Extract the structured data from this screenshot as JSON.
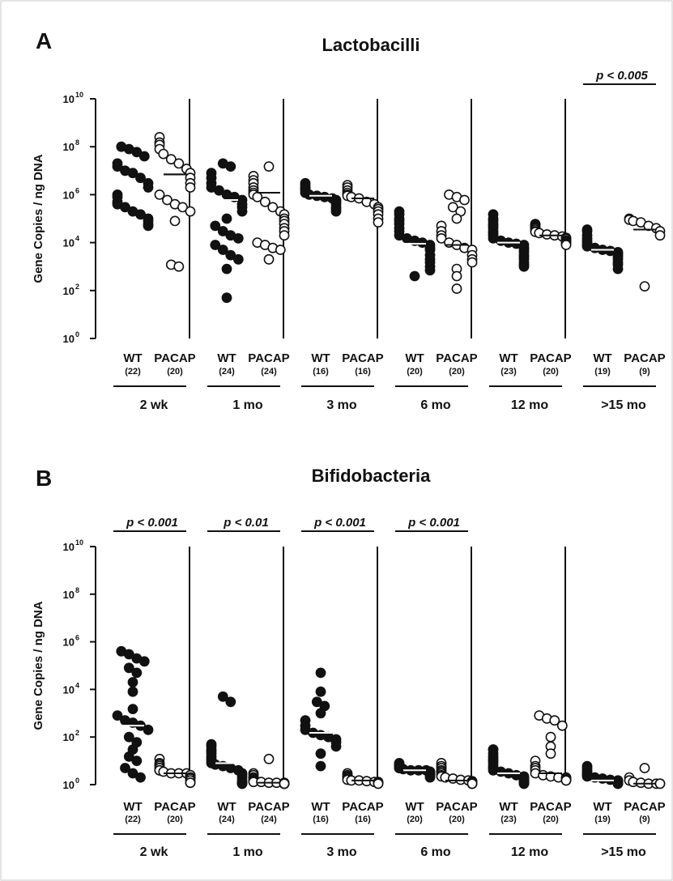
{
  "chart_data": [
    {
      "type": "scatter",
      "panel_letter": "A",
      "title": "Lactobacilli",
      "ylabel": "Gene Copies / ng DNA",
      "yscale": "log",
      "ylim": [
        1,
        10000000000
      ],
      "yticks": [
        {
          "base": "10",
          "exp": "10",
          "value": 10000000000
        },
        {
          "base": "10",
          "exp": "8",
          "value": 100000000
        },
        {
          "base": "10",
          "exp": "6",
          "value": 1000000
        },
        {
          "base": "10",
          "exp": "4",
          "value": 10000
        },
        {
          "base": "10",
          "exp": "2",
          "value": 100
        },
        {
          "base": "10",
          "exp": "0",
          "value": 1
        }
      ],
      "groups": [
        {
          "age": "2 wk",
          "significance": "",
          "series": [
            {
              "name": "WT",
              "n": "(22)",
              "filled": true,
              "median": 1500000,
              "values": [
                100000000,
                80000000,
                60000000,
                40000000,
                20000000,
                15000000,
                10000000,
                8000000,
                5000000,
                3000000,
                2000000,
                1000000,
                800000,
                500000,
                400000,
                300000,
                200000,
                150000,
                100000,
                80000,
                60000,
                50000
              ]
            },
            {
              "name": "PACAP",
              "n": "(20)",
              "filled": false,
              "median": 7000000,
              "values": [
                250000000,
                150000000,
                120000000,
                80000000,
                50000000,
                30000000,
                20000000,
                12000000,
                8000000,
                5000000,
                3000000,
                2000000,
                1000000,
                600000,
                400000,
                300000,
                200000,
                80000,
                1200,
                1000
              ]
            }
          ]
        },
        {
          "age": "1 mo",
          "significance": "",
          "series": [
            {
              "name": "WT",
              "n": "(24)",
              "filled": true,
              "median": 600000,
              "values": [
                20000000,
                15000000,
                8000000,
                5000000,
                3000000,
                2000000,
                1500000,
                1000000,
                800000,
                600000,
                400000,
                300000,
                200000,
                100000,
                50000,
                30000,
                20000,
                15000,
                8000,
                5000,
                3000,
                2000,
                800,
                50
              ]
            },
            {
              "name": "PACAP",
              "n": "(24)",
              "filled": false,
              "median": 1200000,
              "values": [
                15000000,
                6000000,
                4000000,
                3000000,
                2000000,
                1500000,
                1200000,
                1000000,
                800000,
                500000,
                300000,
                200000,
                150000,
                100000,
                80000,
                60000,
                40000,
                30000,
                20000,
                10000,
                8000,
                6000,
                5000,
                2000
              ]
            }
          ]
        },
        {
          "age": "3 mo",
          "significance": "",
          "series": [
            {
              "name": "WT",
              "n": "(16)",
              "filled": true,
              "median": 900000,
              "values": [
                3000000,
                2500000,
                2000000,
                1800000,
                1500000,
                1200000,
                1000000,
                900000,
                800000,
                700000,
                600000,
                500000,
                400000,
                300000,
                250000,
                200000
              ]
            },
            {
              "name": "PACAP",
              "n": "(16)",
              "filled": false,
              "median": 700000,
              "values": [
                2500000,
                2000000,
                1500000,
                1200000,
                1000000,
                900000,
                800000,
                700000,
                500000,
                400000,
                300000,
                250000,
                200000,
                150000,
                100000,
                70000
              ]
            }
          ]
        },
        {
          "age": "6 mo",
          "significance": "",
          "series": [
            {
              "name": "WT",
              "n": "(20)",
              "filled": true,
              "median": 9000,
              "values": [
                200000,
                150000,
                100000,
                80000,
                60000,
                40000,
                30000,
                20000,
                15000,
                12000,
                10000,
                8000,
                6000,
                5000,
                3000,
                2000,
                1500,
                1000,
                700,
                400
              ]
            },
            {
              "name": "PACAP",
              "n": "(20)",
              "filled": false,
              "median": 8000,
              "values": [
                1000000,
                800000,
                600000,
                300000,
                200000,
                100000,
                50000,
                30000,
                20000,
                15000,
                10000,
                8000,
                6000,
                5000,
                3000,
                2000,
                1500,
                800,
                400,
                120
              ]
            }
          ]
        },
        {
          "age": "12 mo",
          "significance": "",
          "series": [
            {
              "name": "WT",
              "n": "(23)",
              "filled": true,
              "median": 10000,
              "values": [
                150000,
                100000,
                80000,
                60000,
                50000,
                40000,
                30000,
                25000,
                20000,
                15000,
                12000,
                10000,
                9000,
                8000,
                6000,
                5000,
                4000,
                3000,
                2500,
                2000,
                1500,
                1200,
                1000
              ]
            },
            {
              "name": "PACAP",
              "n": "(20)",
              "filled": false,
              "median": 20000,
              "values": [
                60000,
                55000,
                50000,
                45000,
                40000,
                35000,
                30000,
                28000,
                25000,
                22000,
                20000,
                18000,
                16000,
                15000,
                14000,
                12000,
                11000,
                10000,
                9000,
                8000
              ]
            }
          ]
        },
        {
          "age": ">15 mo",
          "significance": "p < 0.005",
          "series": [
            {
              "name": "WT",
              "n": "(19)",
              "filled": true,
              "median": 5000,
              "values": [
                35000,
                30000,
                20000,
                15000,
                12000,
                10000,
                8000,
                7000,
                6000,
                5000,
                4500,
                4000,
                3500,
                3000,
                2500,
                2000,
                1500,
                1200,
                800
              ]
            },
            {
              "name": "PACAP",
              "n": "(9)",
              "filled": false,
              "median": 35000,
              "values": [
                100000,
                90000,
                80000,
                70000,
                50000,
                40000,
                30000,
                20000,
                150
              ]
            }
          ]
        }
      ]
    },
    {
      "type": "scatter",
      "panel_letter": "B",
      "title": "Bifidobacteria",
      "ylabel": "Gene Copies / ng DNA",
      "yscale": "log",
      "ylim": [
        1,
        10000000000
      ],
      "yticks": [
        {
          "base": "10",
          "exp": "10",
          "value": 10000000000
        },
        {
          "base": "10",
          "exp": "8",
          "value": 100000000
        },
        {
          "base": "10",
          "exp": "6",
          "value": 1000000
        },
        {
          "base": "10",
          "exp": "4",
          "value": 10000
        },
        {
          "base": "10",
          "exp": "2",
          "value": 100
        },
        {
          "base": "10",
          "exp": "0",
          "value": 1
        }
      ],
      "groups": [
        {
          "age": "2 wk",
          "significance": "p < 0.001",
          "series": [
            {
              "name": "WT",
              "n": "(22)",
              "filled": true,
              "median": 300,
              "values": [
                400000,
                300000,
                200000,
                150000,
                80000,
                50000,
                20000,
                8000,
                1500,
                800,
                500,
                400,
                300,
                200,
                100,
                60,
                30,
                15,
                10,
                5,
                3,
                2
              ]
            },
            {
              "name": "PACAP",
              "n": "(20)",
              "filled": false,
              "median": 3,
              "values": [
                12,
                8,
                7,
                6,
                5,
                5,
                4,
                4,
                3.5,
                3,
                3,
                3,
                2.5,
                2.5,
                2,
                2,
                1.8,
                1.5,
                1.2,
                1.2
              ]
            }
          ]
        },
        {
          "age": "1 mo",
          "significance": "p < 0.01",
          "series": [
            {
              "name": "WT",
              "n": "(24)",
              "filled": true,
              "median": 8,
              "values": [
                5000,
                3000,
                50,
                40,
                30,
                25,
                20,
                15,
                12,
                10,
                8,
                7,
                6,
                5,
                4,
                3,
                2.5,
                2,
                1.5,
                1.2,
                1.2,
                1.1,
                1.1,
                1.1
              ]
            },
            {
              "name": "PACAP",
              "n": "(24)",
              "filled": false,
              "median": 1.2,
              "values": [
                12,
                3,
                2.5,
                2,
                2,
                1.8,
                1.6,
                1.5,
                1.5,
                1.4,
                1.3,
                1.3,
                1.2,
                1.2,
                1.2,
                1.1,
                1.1,
                1.1,
                1.1,
                1.1,
                1.1,
                1.1,
                1.1,
                1.1
              ]
            }
          ]
        },
        {
          "age": "3 mo",
          "significance": "p < 0.001",
          "series": [
            {
              "name": "WT",
              "n": "(16)",
              "filled": true,
              "median": 150,
              "values": [
                50000,
                8000,
                3000,
                2000,
                1000,
                500,
                300,
                200,
                150,
                120,
                100,
                80,
                60,
                40,
                20,
                6
              ]
            },
            {
              "name": "PACAP",
              "n": "(16)",
              "filled": false,
              "median": 1.5,
              "values": [
                3,
                2.5,
                2.2,
                2,
                1.8,
                1.6,
                1.5,
                1.5,
                1.4,
                1.3,
                1.3,
                1.2,
                1.2,
                1.2,
                1.1,
                1.1
              ]
            }
          ]
        },
        {
          "age": "6 mo",
          "significance": "p < 0.001",
          "series": [
            {
              "name": "WT",
              "n": "(20)",
              "filled": true,
              "median": 4,
              "values": [
                8,
                7,
                7,
                6,
                6,
                5,
                5,
                5,
                4.5,
                4,
                4,
                4,
                3.5,
                3.5,
                3,
                3,
                3,
                2.5,
                2.5,
                2
              ]
            },
            {
              "name": "PACAP",
              "n": "(20)",
              "filled": false,
              "median": 1.5,
              "values": [
                8,
                6,
                5,
                4,
                3.5,
                3,
                2.5,
                2.2,
                2,
                1.8,
                1.6,
                1.5,
                1.4,
                1.3,
                1.2,
                1.2,
                1.1,
                1.1,
                1.1,
                1.1
              ]
            }
          ]
        },
        {
          "age": "12 mo",
          "significance": "",
          "series": [
            {
              "name": "WT",
              "n": "(23)",
              "filled": true,
              "median": 3,
              "values": [
                30,
                30,
                20,
                15,
                12,
                10,
                8,
                6,
                5,
                4,
                3.5,
                3,
                2.5,
                2.2,
                2,
                1.8,
                1.6,
                1.5,
                1.4,
                1.3,
                1.2,
                1.1,
                1.1
              ]
            },
            {
              "name": "PACAP",
              "n": "(20)",
              "filled": false,
              "median": 3,
              "values": [
                800,
                600,
                500,
                300,
                100,
                40,
                20,
                10,
                6,
                5,
                4,
                3,
                2.5,
                2.2,
                2,
                2,
                1.8,
                1.6,
                1.5,
                1.5
              ]
            }
          ]
        },
        {
          "age": ">15 mo",
          "significance": "",
          "series": [
            {
              "name": "WT",
              "n": "(19)",
              "filled": true,
              "median": 1.5,
              "values": [
                6,
                5,
                4,
                3.5,
                3,
                2.8,
                2.5,
                2.2,
                2,
                1.8,
                1.6,
                1.5,
                1.4,
                1.3,
                1.2,
                1.2,
                1.1,
                1.1,
                1.1
              ]
            },
            {
              "name": "PACAP",
              "n": "(9)",
              "filled": false,
              "median": 1.1,
              "values": [
                5,
                2,
                1.5,
                1.3,
                1.2,
                1.1,
                1.1,
                1.1,
                1.1
              ]
            }
          ]
        }
      ]
    }
  ]
}
